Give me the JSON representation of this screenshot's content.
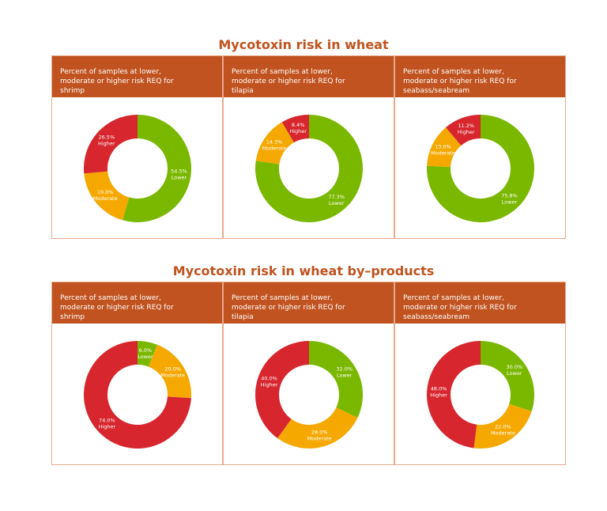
{
  "sections": [
    {
      "title": "Mycotoxin risk in wheat"
    },
    {
      "title": "Mycotoxin risk in wheat by–products"
    }
  ],
  "chart_data": [
    {
      "type": "pie",
      "title": "Percent of samples at lower, moderate or higher risk REQ for shrimp",
      "categories": [
        "Lower",
        "Moderate",
        "Higher"
      ],
      "values": [
        54.5,
        19.0,
        26.5
      ],
      "value_labels": [
        "54.5%",
        "19.0%",
        "26.5%"
      ],
      "colors": [
        "#7ab800",
        "#f5a800",
        "#d7262e"
      ]
    },
    {
      "type": "pie",
      "title": "Percent of samples at lower, moderate or higher risk REQ for tilapia",
      "categories": [
        "Lower",
        "Moderate",
        "Higher"
      ],
      "values": [
        77.3,
        14.3,
        8.4
      ],
      "value_labels": [
        "77.3%",
        "14.3%",
        "8.4%"
      ],
      "colors": [
        "#7ab800",
        "#f5a800",
        "#d7262e"
      ]
    },
    {
      "type": "pie",
      "title": "Percent of samples at lower, moderate or higher risk REQ for seabass/seabream",
      "categories": [
        "Lower",
        "Moderate",
        "Higher"
      ],
      "values": [
        75.8,
        13.0,
        11.2
      ],
      "value_labels": [
        "75.8%",
        "13.0%",
        "11.2%"
      ],
      "colors": [
        "#7ab800",
        "#f5a800",
        "#d7262e"
      ]
    },
    {
      "type": "pie",
      "title": "Percent of samples at lower, moderate or higher risk REQ for shrimp",
      "categories": [
        "Lower",
        "Moderate",
        "Higher"
      ],
      "values": [
        6.0,
        20.0,
        74.0
      ],
      "value_labels": [
        "6.0%",
        "20.0%",
        "74.0%"
      ],
      "colors": [
        "#7ab800",
        "#f5a800",
        "#d7262e"
      ]
    },
    {
      "type": "pie",
      "title": "Percent of samples at lower, moderate or higher risk REQ for tilapia",
      "categories": [
        "Lower",
        "Moderate",
        "Higher"
      ],
      "values": [
        32.0,
        28.0,
        40.0
      ],
      "value_labels": [
        "32.0%",
        "28.0%",
        "40.0%"
      ],
      "colors": [
        "#7ab800",
        "#f5a800",
        "#d7262e"
      ]
    },
    {
      "type": "pie",
      "title": "Percent of samples at lower, moderate or higher risk REQ for seabass/seabream",
      "categories": [
        "Lower",
        "Moderate",
        "Higher"
      ],
      "values": [
        30.0,
        22.0,
        48.0
      ],
      "value_labels": [
        "30.0%",
        "22.0%",
        "48.0%"
      ],
      "colors": [
        "#7ab800",
        "#f5a800",
        "#d7262e"
      ]
    }
  ]
}
